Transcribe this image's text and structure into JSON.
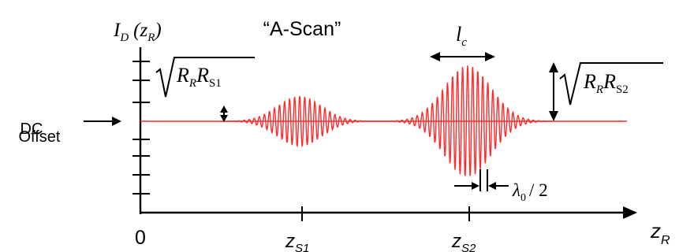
{
  "title": "“A-Scan”",
  "y_axis": {
    "main": "I",
    "sub": "D",
    "arg": "(z",
    "arg_sub": "R",
    "close": ")"
  },
  "x_axis": {
    "label": "z",
    "sub": "R",
    "origin": "0"
  },
  "dc_offset": {
    "line1": "DC",
    "line2": "Offset"
  },
  "amp1": {
    "R1": "R",
    "s1": "R",
    "R2": "R",
    "s2": "S1"
  },
  "amp2": {
    "R1": "R",
    "s1": "R",
    "R2": "R",
    "s2": "S2"
  },
  "coherence": {
    "main": "l",
    "sub": "c"
  },
  "wavelength": {
    "lambda": "λ",
    "sub": "0",
    "rest": "/ 2"
  },
  "positions": [
    {
      "main": "z",
      "sub": "S1"
    },
    {
      "main": "z",
      "sub": "S2"
    }
  ],
  "colors": {
    "signal": "#ff2a2a",
    "axes": "#000000"
  }
}
